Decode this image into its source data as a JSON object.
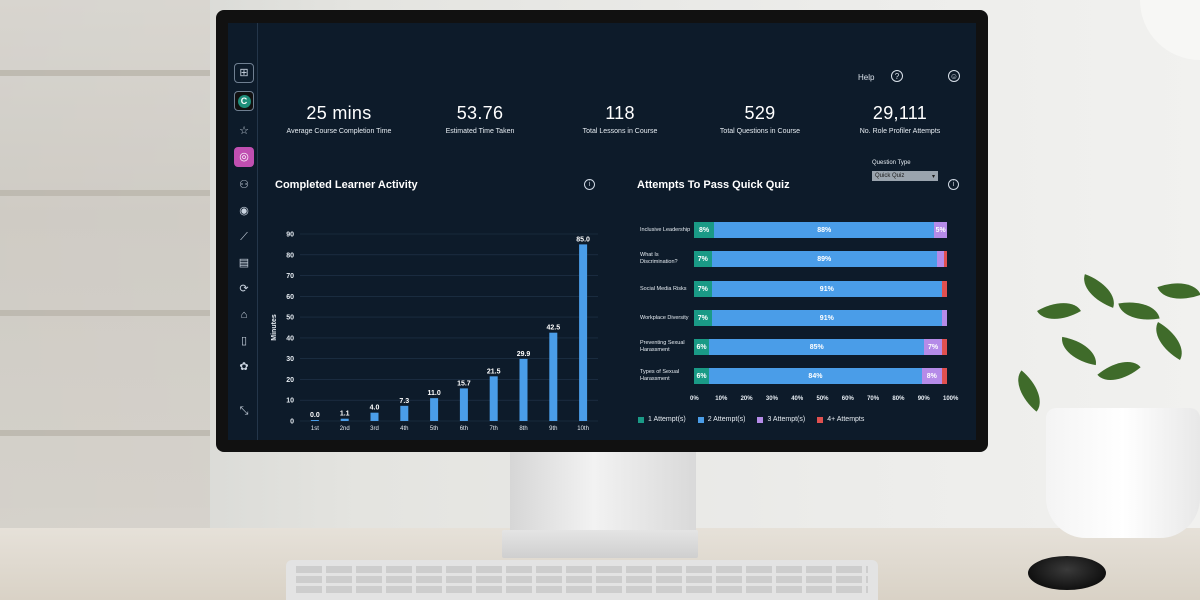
{
  "topbar": {
    "help_label": "Help",
    "help_icon": "?",
    "user_icon": "☺"
  },
  "sidebar": {
    "items": [
      {
        "name": "grid-icon",
        "glyph": "⊞"
      },
      {
        "name": "logo-icon",
        "glyph": "C"
      },
      {
        "name": "star-icon",
        "glyph": "☆"
      },
      {
        "name": "course-icon",
        "glyph": "◎"
      },
      {
        "name": "people-icon",
        "glyph": "⚇"
      },
      {
        "name": "target-icon",
        "glyph": "◉"
      },
      {
        "name": "trend-icon",
        "glyph": "⟋"
      },
      {
        "name": "report-icon",
        "glyph": "▤"
      },
      {
        "name": "refresh-icon",
        "glyph": "⟳"
      },
      {
        "name": "bank-icon",
        "glyph": "⌂"
      },
      {
        "name": "mobile-icon",
        "glyph": "▯"
      },
      {
        "name": "sprout-icon",
        "glyph": "✿"
      },
      {
        "name": "collapse-icon",
        "glyph": "⤡"
      }
    ]
  },
  "stats": [
    {
      "value": "25 mins",
      "label": "Average Course Completion Time"
    },
    {
      "value": "53.76",
      "label": "Estimated Time Taken"
    },
    {
      "value": "118",
      "label": "Total Lessons in Course"
    },
    {
      "value": "529",
      "label": "Total Questions in Course"
    },
    {
      "value": "29,111",
      "label": "No. Role Profiler Attempts"
    }
  ],
  "activity": {
    "title": "Completed Learner Activity",
    "info_icon": "i"
  },
  "quiz": {
    "title": "Attempts To Pass Quick Quiz",
    "info_icon": "i",
    "question_type_label": "Question Type",
    "question_type_value": "Quick Quiz",
    "dropdown_icon": "▾",
    "ticks": [
      "0%",
      "10%",
      "20%",
      "30%",
      "40%",
      "50%",
      "60%",
      "70%",
      "80%",
      "90%",
      "100%"
    ],
    "legend": [
      {
        "label": "1 Attempt(s)",
        "color": "#1a9a86"
      },
      {
        "label": "2 Attempt(s)",
        "color": "#4a9de8"
      },
      {
        "label": "3 Attempt(s)",
        "color": "#b58be8"
      },
      {
        "label": "4+ Attempts",
        "color": "#e0504f"
      }
    ]
  },
  "chart_data": [
    {
      "type": "bar",
      "title": "Completed Learner Activity",
      "xlabel": "",
      "ylabel": "Minutes",
      "ylim": [
        0,
        90
      ],
      "yticks": [
        0,
        10,
        20,
        30,
        40,
        50,
        60,
        70,
        80,
        90
      ],
      "categories": [
        "1st",
        "2nd",
        "3rd",
        "4th",
        "5th",
        "6th",
        "7th",
        "8th",
        "9th",
        "10th"
      ],
      "values": [
        0.0,
        1.1,
        4.0,
        7.3,
        11.0,
        15.7,
        21.5,
        29.9,
        42.5,
        85.0
      ],
      "value_labels": [
        "0.0",
        "1.1",
        "4.0",
        "7.3",
        "11.0",
        "15.7",
        "21.5",
        "29.9",
        "42.5",
        "85.0"
      ],
      "color": "#4a9de8"
    },
    {
      "type": "bar",
      "orientation": "horizontal-stacked",
      "title": "Attempts To Pass Quick Quiz",
      "categories": [
        "Inclusive Leadership",
        "What Is Discrimination?",
        "Social Media Risks",
        "Workplace Diversity",
        "Preventing Sexual Harassment",
        "Types of Sexual Harassment"
      ],
      "series": [
        {
          "name": "1 Attempt(s)",
          "values": [
            8,
            7,
            7,
            7,
            6,
            6
          ],
          "labels": [
            "8%",
            "7%",
            "7%",
            "7%",
            "6%",
            "6%"
          ]
        },
        {
          "name": "2 Attempt(s)",
          "values": [
            88,
            89,
            91,
            91,
            85,
            84
          ],
          "labels": [
            "88%",
            "89%",
            "91%",
            "91%",
            "85%",
            "84%"
          ]
        },
        {
          "name": "3 Attempt(s)",
          "values": [
            5,
            3,
            0,
            2,
            7,
            8
          ],
          "labels": [
            "5%",
            "",
            "",
            "",
            "7%",
            "8%"
          ]
        },
        {
          "name": "4+ Attempts",
          "values": [
            0,
            1,
            2,
            0,
            2,
            2
          ],
          "labels": [
            "",
            "",
            "",
            "",
            "",
            ""
          ]
        }
      ],
      "xlim": [
        0,
        100
      ]
    }
  ]
}
